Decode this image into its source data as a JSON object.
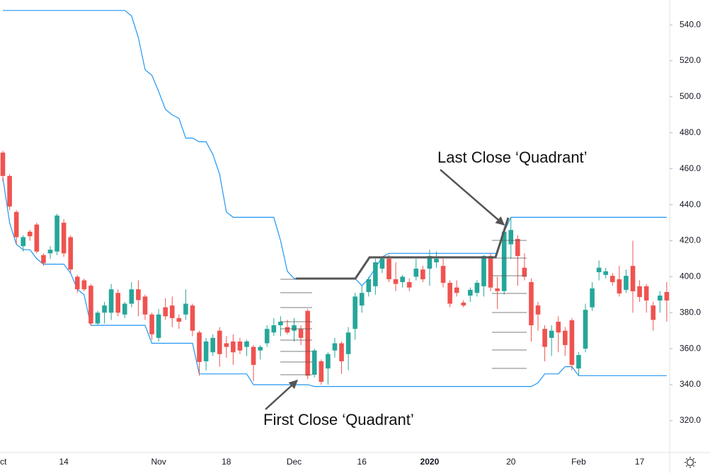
{
  "chart_data": {
    "type": "candlestick",
    "categories": [
      "ct",
      null,
      null,
      null,
      null,
      null,
      null,
      null,
      null,
      "14",
      null,
      null,
      null,
      null,
      null,
      null,
      null,
      null,
      null,
      null,
      null,
      null,
      null,
      "Nov",
      null,
      null,
      null,
      null,
      null,
      null,
      null,
      null,
      null,
      "18",
      null,
      null,
      null,
      null,
      null,
      null,
      null,
      null,
      null,
      "Dec",
      null,
      null,
      null,
      null,
      null,
      null,
      null,
      null,
      null,
      "16",
      null,
      null,
      null,
      null,
      null,
      null,
      null,
      null,
      null,
      "2020",
      null,
      null,
      null,
      null,
      null,
      null,
      null,
      null,
      null,
      null,
      null,
      "20",
      null,
      null,
      null,
      null,
      null,
      null,
      null,
      null,
      null,
      "Feb",
      null,
      null,
      null,
      null,
      null,
      null,
      null,
      null,
      "17",
      null,
      null,
      null,
      null
    ],
    "open": [
      469,
      456,
      436,
      417,
      425,
      429,
      412,
      413,
      414,
      430,
      422,
      400,
      398,
      395,
      374,
      380,
      380,
      391,
      379,
      385,
      393,
      389,
      379,
      366,
      383,
      384,
      377,
      379,
      384,
      369,
      353,
      358,
      370,
      363,
      364,
      364,
      361,
      361,
      359,
      363,
      369,
      373,
      372,
      370,
      371,
      381,
      345.5,
      353,
      349,
      359,
      363,
      357,
      371,
      384,
      391.5,
      394.7,
      404.5,
      410,
      398.6,
      397,
      397,
      400,
      404,
      404.5,
      408,
      406,
      396.6,
      394,
      385.6,
      389.5,
      391,
      394.7,
      411.5,
      393.5,
      392,
      418,
      421,
      405,
      397,
      384,
      371,
      366,
      375,
      370,
      375.8,
      349,
      360,
      383,
      402.5,
      401,
      400.5,
      398.6,
      392.7,
      406,
      394.7,
      394.7,
      384,
      386.8,
      391.5
    ],
    "high": [
      470,
      457,
      437,
      423,
      426,
      430,
      413,
      417,
      435,
      432,
      423,
      401,
      399,
      396,
      381,
      386,
      396,
      393,
      386,
      397,
      398,
      390,
      380,
      382,
      388,
      389,
      379,
      393,
      385,
      370,
      366,
      368,
      372,
      367,
      368,
      366,
      365,
      362,
      362,
      373,
      377,
      378,
      376,
      377,
      373,
      382,
      360,
      354,
      358,
      366,
      364,
      372,
      391,
      395,
      400,
      410,
      411,
      412,
      408,
      401,
      399,
      410,
      406,
      415,
      414,
      410,
      398,
      398,
      387,
      394,
      398,
      412,
      413,
      400,
      427,
      433,
      423,
      413,
      399,
      386,
      373,
      373,
      378,
      372,
      377,
      358,
      385,
      397,
      409,
      405,
      402,
      406,
      404,
      420,
      398,
      396,
      386,
      392,
      397
    ],
    "low": [
      453,
      437,
      418,
      414,
      420,
      413,
      406,
      410,
      412,
      411,
      402,
      391,
      392,
      373,
      373,
      374,
      376,
      378,
      377,
      383,
      378,
      376,
      365,
      364,
      376,
      372,
      371,
      376,
      367,
      345,
      348,
      356,
      350,
      355,
      351,
      357,
      356,
      342,
      354,
      361,
      367,
      367,
      368,
      364,
      362,
      343,
      344,
      340,
      340,
      355,
      346,
      348,
      365,
      380,
      389,
      390,
      402,
      397,
      392,
      394,
      392,
      398,
      397,
      395,
      405,
      394,
      383,
      389,
      383,
      386,
      389,
      389,
      392,
      382,
      390,
      410,
      395,
      398,
      364,
      370,
      353,
      356,
      358,
      356,
      348,
      345,
      358,
      381,
      398,
      399,
      395,
      389,
      391,
      380,
      386,
      380,
      370,
      380,
      375
    ],
    "close": [
      456,
      439,
      422,
      422,
      422.5,
      414,
      407.5,
      415,
      434,
      413,
      404,
      393,
      393,
      374,
      380,
      384,
      393,
      380,
      385,
      393,
      387,
      379,
      368,
      379,
      378,
      377,
      375,
      385,
      370,
      352.6,
      364,
      366,
      357,
      361,
      358,
      359,
      364,
      351,
      361,
      371,
      373,
      375,
      369,
      373,
      366,
      345,
      359,
      341.6,
      357,
      363,
      353,
      369,
      389,
      391,
      398.6,
      408,
      410,
      398.6,
      396,
      400,
      394,
      404.5,
      398.6,
      411.5,
      410,
      396.6,
      385,
      391,
      384,
      392.7,
      396.6,
      411.5,
      394,
      392,
      425,
      426,
      411.5,
      400,
      373,
      379,
      361,
      370,
      369,
      362,
      351,
      356.5,
      381.6,
      393.5,
      405,
      403,
      397,
      390.7,
      400.5,
      391.9,
      388.7,
      386.8,
      376,
      389.5,
      386.8
    ],
    "up_color": "#26a69a",
    "down_color": "#ef5350",
    "bands": [
      {
        "color": "#2196f3",
        "values": [
          548,
          548,
          548,
          548,
          548,
          548,
          548,
          548,
          548,
          548,
          548,
          548,
          548,
          548,
          548,
          548,
          548,
          548,
          548,
          545,
          533,
          515,
          512,
          503,
          493,
          490,
          488,
          477,
          477,
          475,
          475,
          468,
          457,
          436,
          433,
          433,
          433,
          433,
          433,
          433,
          433,
          420,
          403,
          399,
          399,
          399,
          399,
          399,
          399,
          399,
          399,
          399,
          399,
          395,
          399,
          405,
          411,
          413,
          413,
          413,
          413,
          413,
          413,
          413,
          413,
          413,
          413,
          413,
          413,
          413,
          413,
          413,
          413,
          413,
          425,
          433,
          433,
          433,
          433,
          433,
          433,
          433,
          433,
          433,
          433,
          433,
          433,
          433,
          433,
          433,
          433,
          433,
          433,
          433,
          433,
          433,
          433,
          433,
          433
        ]
      },
      {
        "color": "#2196f3",
        "values": [
          455,
          430,
          418,
          415,
          415,
          410,
          407,
          407,
          407,
          407,
          402,
          393,
          390,
          373,
          373,
          373,
          373,
          373,
          373,
          373,
          373,
          373,
          363,
          363,
          363,
          363,
          363,
          363,
          363,
          346,
          346,
          346,
          346,
          346,
          346,
          346,
          346,
          340,
          340,
          340,
          340,
          340,
          340,
          340,
          340,
          340,
          339,
          339,
          339,
          339,
          339,
          339,
          339,
          339,
          339,
          339,
          339,
          339,
          339,
          339,
          339,
          339,
          339,
          339,
          339,
          339,
          339,
          339,
          339,
          339,
          339,
          339,
          339,
          339,
          339,
          339,
          339,
          339,
          339,
          341,
          346,
          346,
          346,
          350,
          350,
          345,
          345,
          345,
          345,
          345,
          345,
          345,
          345,
          345,
          345,
          345,
          345,
          345,
          345
        ]
      }
    ],
    "ylim": [
      302.3,
      553.8
    ],
    "yticks": [
      {
        "value": 320,
        "label": "320.0"
      },
      {
        "value": 340,
        "label": "340.0"
      },
      {
        "value": 360,
        "label": "360.0"
      },
      {
        "value": 380,
        "label": "380.0"
      },
      {
        "value": 400,
        "label": "400.0"
      },
      {
        "value": 420,
        "label": "420.0"
      },
      {
        "value": 440,
        "label": "440.0"
      },
      {
        "value": 460,
        "label": "460.0"
      },
      {
        "value": 480,
        "label": "480.0"
      },
      {
        "value": 500,
        "label": "500.0"
      },
      {
        "value": 520,
        "label": "520.0"
      },
      {
        "value": 540,
        "label": "540.0"
      }
    ],
    "annotations": [
      "Last Close ‘Quadrant’",
      "First Close ‘Quadrant’"
    ]
  }
}
